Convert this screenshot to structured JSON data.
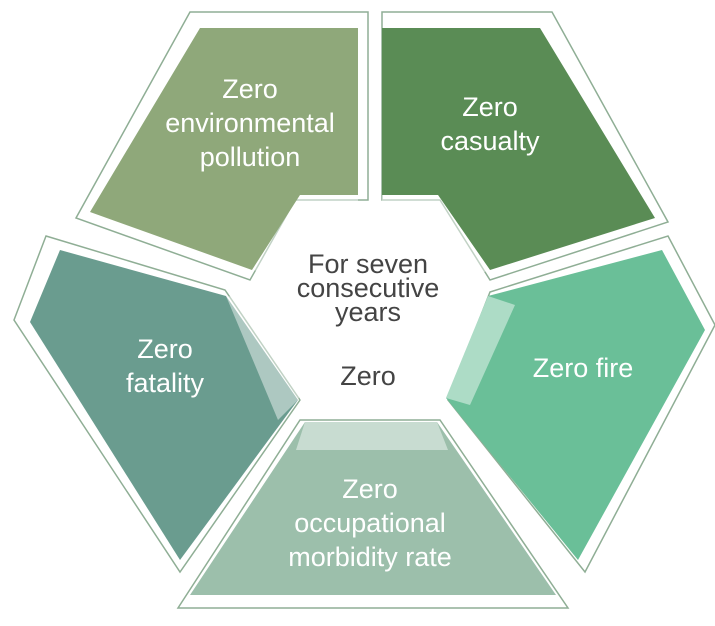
{
  "segments": [
    {
      "lines": [
        "Zero",
        "environmental",
        "pollution"
      ]
    },
    {
      "lines": [
        "Zero",
        "casualty"
      ]
    },
    {
      "lines": [
        "Zero fire"
      ]
    },
    {
      "lines": [
        "Zero",
        "occupational",
        "morbidity rate"
      ]
    },
    {
      "lines": [
        "Zero",
        "fatality"
      ]
    }
  ],
  "center": {
    "lines": [
      "For seven",
      "consecutive",
      "years"
    ],
    "title": "Zero"
  }
}
